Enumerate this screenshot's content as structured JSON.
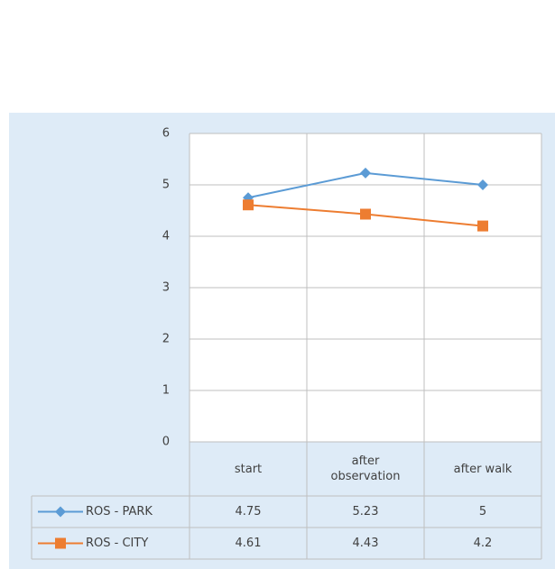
{
  "chart_data": {
    "type": "line",
    "categories": [
      "start",
      "after observation",
      "after walk"
    ],
    "series": [
      {
        "name": "ROS - PARK",
        "color": "#5b9bd5",
        "marker": "diamond",
        "values": [
          4.75,
          5.23,
          5
        ]
      },
      {
        "name": "ROS - CITY",
        "color": "#ed7d31",
        "marker": "square",
        "values": [
          4.61,
          4.43,
          4.2
        ]
      }
    ],
    "ylim": [
      0,
      6
    ],
    "yticks": [
      0,
      1,
      2,
      3,
      4,
      5,
      6
    ],
    "grid": true,
    "legend": "table"
  }
}
